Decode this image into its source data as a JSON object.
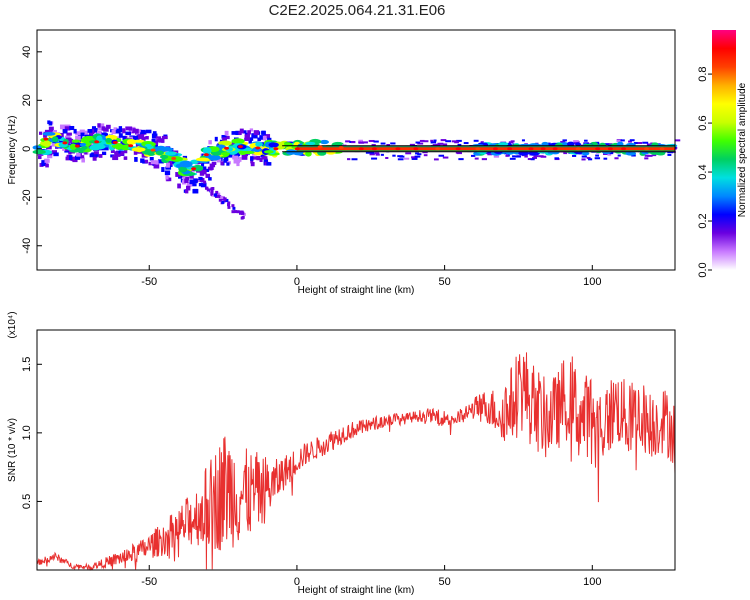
{
  "title": "C2E2.2025.064.21.31.E06",
  "colors": {
    "signal": "#e8302f",
    "frame": "#000000"
  },
  "chart_data": [
    {
      "type": "heatmap",
      "xlabel": "Height of straight line (km)",
      "ylabel": "Frequency (Hz)",
      "xlim": [
        -88,
        128
      ],
      "ylim": [
        -50,
        49
      ],
      "xticks": [
        -50,
        0,
        50,
        100
      ],
      "yticks": [
        -40,
        -20,
        0,
        20,
        40
      ],
      "colorbar": {
        "label": "Normalized spectral amplitude",
        "range": [
          0,
          1
        ],
        "ticks": [
          "0.0",
          "0.2",
          "0.4",
          "0.6",
          "0.8"
        ],
        "colormap": [
          "#ffffff",
          "#c87aff",
          "#6a00e0",
          "#0000ff",
          "#0088ff",
          "#00e0e0",
          "#00d060",
          "#40ff00",
          "#c8ff00",
          "#ffff00",
          "#ffb000",
          "#ff4000",
          "#ff0000",
          "#ff0080"
        ]
      },
      "ridge": [
        {
          "x": -85,
          "f": 4
        },
        {
          "x": -80,
          "f": 3
        },
        {
          "x": -75,
          "f": 1
        },
        {
          "x": -70,
          "f": 2
        },
        {
          "x": -65,
          "f": 4
        },
        {
          "x": -60,
          "f": 2
        },
        {
          "x": -55,
          "f": 1
        },
        {
          "x": -50,
          "f": 0
        },
        {
          "x": -45,
          "f": -2
        },
        {
          "x": -40,
          "f": -5
        },
        {
          "x": -36,
          "f": -10
        },
        {
          "x": -32,
          "f": -3
        },
        {
          "x": -25,
          "f": 0
        },
        {
          "x": -20,
          "f": 1
        },
        {
          "x": -10,
          "f": 0
        },
        {
          "x": 0,
          "f": 0
        },
        {
          "x": 10,
          "f": 1
        },
        {
          "x": 20,
          "f": 0
        },
        {
          "x": 60,
          "f": 0
        },
        {
          "x": 75,
          "f": 0
        },
        {
          "x": 100,
          "f": 0
        },
        {
          "x": 128,
          "f": 0
        }
      ]
    },
    {
      "type": "line",
      "xlabel": "Height of straight line (km)",
      "ylabel": "SNR (10 * v/v)",
      "multiplier": "(x10⁴)",
      "xlim": [
        -88,
        128
      ],
      "ylim": [
        0,
        1.75
      ],
      "xticks": [
        -50,
        0,
        50,
        100
      ],
      "yticks": [
        "0.5",
        "1.0",
        "1.5"
      ],
      "series": [
        {
          "color": "#e8302f",
          "x": [
            -88,
            -82,
            -76,
            -70,
            -64,
            -58,
            -52,
            -46,
            -40,
            -34,
            -28,
            -24,
            -20,
            -16,
            -12,
            -8,
            -4,
            0,
            4,
            8,
            12,
            16,
            20,
            24,
            28,
            32,
            36,
            40,
            44,
            48,
            52,
            56,
            60,
            64,
            68,
            72,
            76,
            80,
            84,
            88,
            92,
            96,
            100,
            104,
            108,
            112,
            116,
            120,
            124,
            128
          ],
          "y": [
            0.05,
            0.1,
            0.03,
            0.02,
            0.06,
            0.1,
            0.15,
            0.22,
            0.3,
            0.4,
            0.5,
            0.6,
            0.55,
            0.55,
            0.58,
            0.62,
            0.72,
            0.8,
            0.86,
            0.9,
            0.95,
            1.0,
            1.03,
            1.05,
            1.08,
            1.1,
            1.1,
            1.12,
            1.13,
            1.12,
            1.1,
            1.12,
            1.18,
            1.2,
            1.15,
            1.18,
            1.35,
            1.2,
            1.1,
            1.15,
            1.3,
            1.1,
            1.15,
            1.05,
            1.2,
            1.1,
            1.15,
            1.05,
            1.1,
            1.0
          ],
          "noise": [
            0.02,
            0.03,
            0.02,
            0.02,
            0.04,
            0.06,
            0.08,
            0.12,
            0.16,
            0.22,
            0.38,
            0.45,
            0.38,
            0.32,
            0.28,
            0.18,
            0.12,
            0.1,
            0.08,
            0.08,
            0.08,
            0.07,
            0.06,
            0.05,
            0.05,
            0.05,
            0.04,
            0.04,
            0.05,
            0.05,
            0.06,
            0.06,
            0.08,
            0.12,
            0.18,
            0.28,
            0.35,
            0.32,
            0.3,
            0.28,
            0.35,
            0.32,
            0.3,
            0.28,
            0.28,
            0.26,
            0.26,
            0.25,
            0.25,
            0.25
          ]
        }
      ]
    }
  ]
}
